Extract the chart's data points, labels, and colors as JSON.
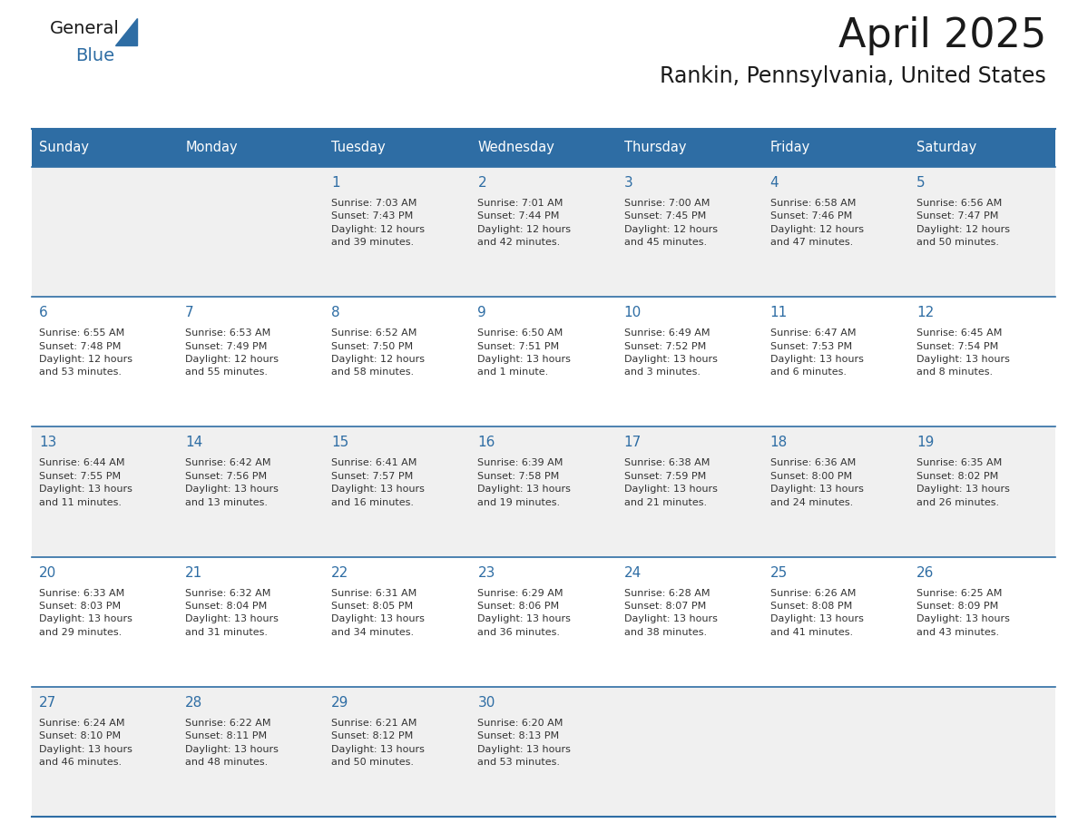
{
  "title": "April 2025",
  "subtitle": "Rankin, Pennsylvania, United States",
  "days_of_week": [
    "Sunday",
    "Monday",
    "Tuesday",
    "Wednesday",
    "Thursday",
    "Friday",
    "Saturday"
  ],
  "header_bg": "#2E6DA4",
  "header_text": "#FFFFFF",
  "cell_bg_light": "#F0F0F0",
  "cell_bg_white": "#FFFFFF",
  "border_color": "#2E6DA4",
  "day_number_color": "#2E6DA4",
  "text_color": "#333333",
  "logo_general_color": "#1a1a1a",
  "logo_blue_color": "#2E6DA4",
  "calendar_data": [
    [
      "",
      "",
      "1\nSunrise: 7:03 AM\nSunset: 7:43 PM\nDaylight: 12 hours\nand 39 minutes.",
      "2\nSunrise: 7:01 AM\nSunset: 7:44 PM\nDaylight: 12 hours\nand 42 minutes.",
      "3\nSunrise: 7:00 AM\nSunset: 7:45 PM\nDaylight: 12 hours\nand 45 minutes.",
      "4\nSunrise: 6:58 AM\nSunset: 7:46 PM\nDaylight: 12 hours\nand 47 minutes.",
      "5\nSunrise: 6:56 AM\nSunset: 7:47 PM\nDaylight: 12 hours\nand 50 minutes."
    ],
    [
      "6\nSunrise: 6:55 AM\nSunset: 7:48 PM\nDaylight: 12 hours\nand 53 minutes.",
      "7\nSunrise: 6:53 AM\nSunset: 7:49 PM\nDaylight: 12 hours\nand 55 minutes.",
      "8\nSunrise: 6:52 AM\nSunset: 7:50 PM\nDaylight: 12 hours\nand 58 minutes.",
      "9\nSunrise: 6:50 AM\nSunset: 7:51 PM\nDaylight: 13 hours\nand 1 minute.",
      "10\nSunrise: 6:49 AM\nSunset: 7:52 PM\nDaylight: 13 hours\nand 3 minutes.",
      "11\nSunrise: 6:47 AM\nSunset: 7:53 PM\nDaylight: 13 hours\nand 6 minutes.",
      "12\nSunrise: 6:45 AM\nSunset: 7:54 PM\nDaylight: 13 hours\nand 8 minutes."
    ],
    [
      "13\nSunrise: 6:44 AM\nSunset: 7:55 PM\nDaylight: 13 hours\nand 11 minutes.",
      "14\nSunrise: 6:42 AM\nSunset: 7:56 PM\nDaylight: 13 hours\nand 13 minutes.",
      "15\nSunrise: 6:41 AM\nSunset: 7:57 PM\nDaylight: 13 hours\nand 16 minutes.",
      "16\nSunrise: 6:39 AM\nSunset: 7:58 PM\nDaylight: 13 hours\nand 19 minutes.",
      "17\nSunrise: 6:38 AM\nSunset: 7:59 PM\nDaylight: 13 hours\nand 21 minutes.",
      "18\nSunrise: 6:36 AM\nSunset: 8:00 PM\nDaylight: 13 hours\nand 24 minutes.",
      "19\nSunrise: 6:35 AM\nSunset: 8:02 PM\nDaylight: 13 hours\nand 26 minutes."
    ],
    [
      "20\nSunrise: 6:33 AM\nSunset: 8:03 PM\nDaylight: 13 hours\nand 29 minutes.",
      "21\nSunrise: 6:32 AM\nSunset: 8:04 PM\nDaylight: 13 hours\nand 31 minutes.",
      "22\nSunrise: 6:31 AM\nSunset: 8:05 PM\nDaylight: 13 hours\nand 34 minutes.",
      "23\nSunrise: 6:29 AM\nSunset: 8:06 PM\nDaylight: 13 hours\nand 36 minutes.",
      "24\nSunrise: 6:28 AM\nSunset: 8:07 PM\nDaylight: 13 hours\nand 38 minutes.",
      "25\nSunrise: 6:26 AM\nSunset: 8:08 PM\nDaylight: 13 hours\nand 41 minutes.",
      "26\nSunrise: 6:25 AM\nSunset: 8:09 PM\nDaylight: 13 hours\nand 43 minutes."
    ],
    [
      "27\nSunrise: 6:24 AM\nSunset: 8:10 PM\nDaylight: 13 hours\nand 46 minutes.",
      "28\nSunrise: 6:22 AM\nSunset: 8:11 PM\nDaylight: 13 hours\nand 48 minutes.",
      "29\nSunrise: 6:21 AM\nSunset: 8:12 PM\nDaylight: 13 hours\nand 50 minutes.",
      "30\nSunrise: 6:20 AM\nSunset: 8:13 PM\nDaylight: 13 hours\nand 53 minutes.",
      "",
      "",
      ""
    ]
  ]
}
